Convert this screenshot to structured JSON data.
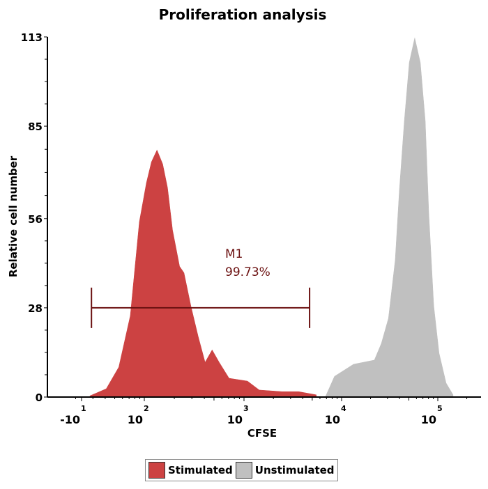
{
  "chart_data": {
    "type": "area",
    "title": "Proliferation analysis",
    "xlabel": "CFSE",
    "ylabel": "Relative cell number",
    "x_scale": "biexponential (log above 10^2)",
    "x_ticks": [
      {
        "value": -10,
        "base": "-10",
        "exp": "1"
      },
      {
        "value": 100,
        "base": "10",
        "exp": "2"
      },
      {
        "value": 1000,
        "base": "10",
        "exp": "3"
      },
      {
        "value": 10000,
        "base": "10",
        "exp": "4"
      },
      {
        "value": 100000,
        "base": "10",
        "exp": "5"
      }
    ],
    "y_ticks": [
      "0",
      "28",
      "56",
      "85",
      "113"
    ],
    "ylim": [
      0,
      113
    ],
    "grid": false,
    "legend_placement": "bottom",
    "series": [
      {
        "name": "Stimulated",
        "color": "#cc4242",
        "x": [
          28,
          41,
          55,
          72,
          89,
          105,
          118,
          134,
          153,
          171,
          192,
          226,
          250,
          294,
          347,
          407,
          479,
          564,
          708,
          1085,
          1434,
          2450,
          3630,
          5500
        ],
        "y": [
          0.4,
          2.6,
          9.4,
          25.5,
          55,
          67.2,
          73.8,
          77.5,
          73.1,
          65.7,
          52.4,
          41,
          39,
          28.4,
          19,
          10.9,
          14.8,
          10.9,
          5.9,
          5,
          2.2,
          1.7,
          1.7,
          0.7
        ]
      },
      {
        "name": "Unstimulated",
        "color": "#c0c0c0",
        "x": [
          6800,
          8450,
          13300,
          21900,
          25900,
          30700,
          36100,
          39900,
          44900,
          50500,
          57600,
          65800,
          74000,
          80700,
          90800,
          103000,
          122000,
          144000
        ],
        "y": [
          0,
          6.5,
          10.3,
          11.6,
          16.8,
          24.7,
          43,
          65,
          86.7,
          105,
          112.7,
          105,
          86.7,
          57.6,
          28.6,
          13.8,
          4.4,
          0.7
        ]
      }
    ],
    "annotations": [
      {
        "label": "M1",
        "value_text": "99.73%",
        "x_range": [
          29,
          4700
        ],
        "y": 28,
        "color": "#6b1010"
      }
    ]
  }
}
